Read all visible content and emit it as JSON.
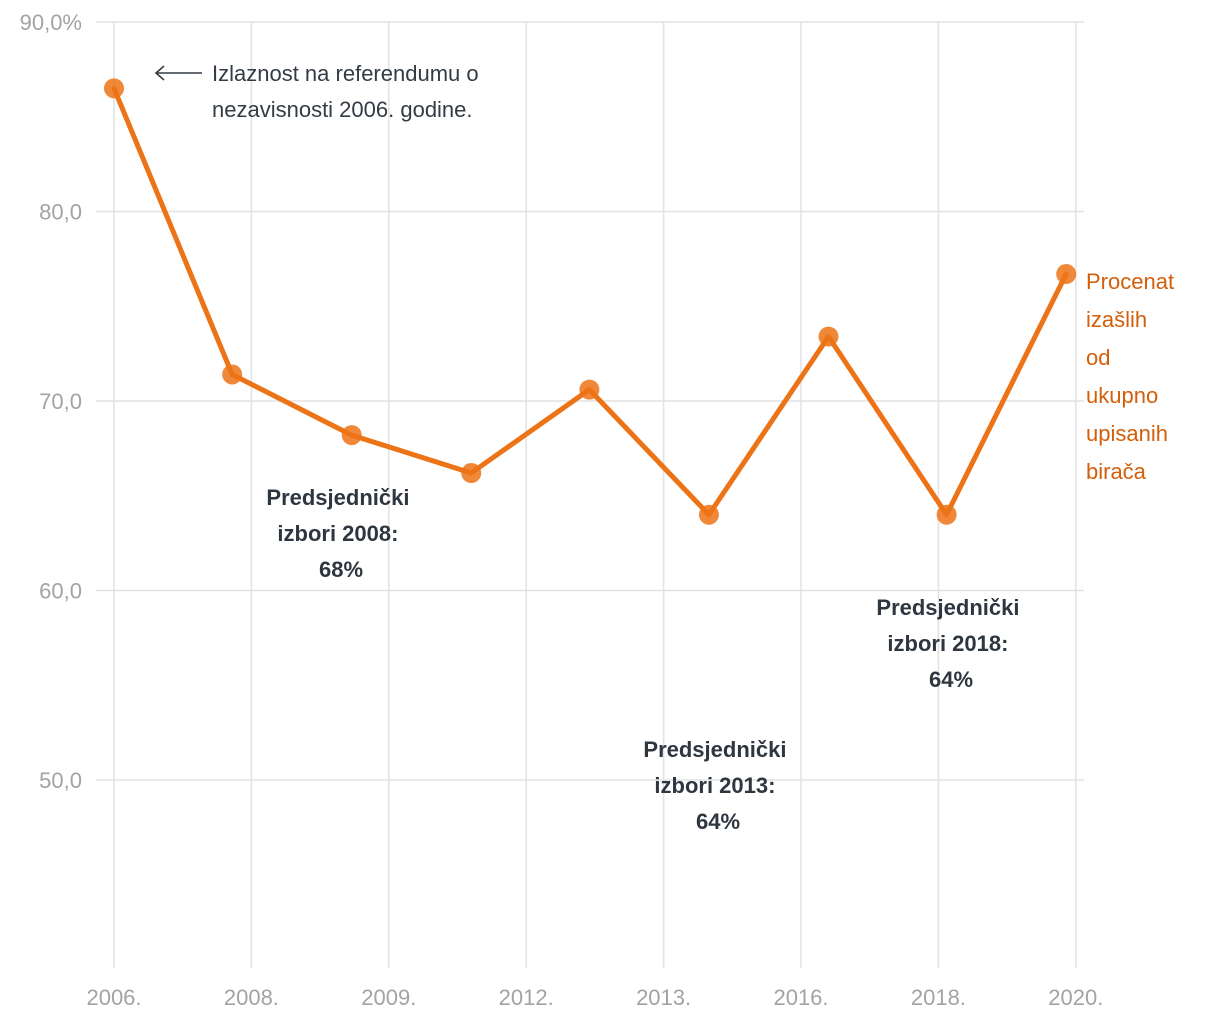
{
  "colors": {
    "line": "#ec7316",
    "point": "#ec7316",
    "grid": "#e2e2e2",
    "tick_text": "#a3a3a3",
    "annotation_text": "#2e3640",
    "series_label": "#d35f0a"
  },
  "chart_data": {
    "type": "line",
    "title": "",
    "xlabel": "",
    "ylabel": "",
    "ylim": [
      40,
      90
    ],
    "y_ticks": [
      {
        "value": 90,
        "label": "90,0%"
      },
      {
        "value": 80,
        "label": "80,0"
      },
      {
        "value": 70,
        "label": "70,0"
      },
      {
        "value": 60,
        "label": "60,0"
      },
      {
        "value": 50,
        "label": "50,0"
      }
    ],
    "x_ticks": [
      {
        "pos": 0,
        "label": "2006."
      },
      {
        "pos": 1,
        "label": "2008."
      },
      {
        "pos": 2,
        "label": "2009."
      },
      {
        "pos": 3,
        "label": "2012."
      },
      {
        "pos": 4,
        "label": "2013."
      },
      {
        "pos": 5,
        "label": "2016."
      },
      {
        "pos": 6,
        "label": "2018."
      },
      {
        "pos": 7,
        "label": "2020."
      }
    ],
    "series": [
      {
        "name": "Procenat izašlih od ukupno upisanih birača",
        "label_lines": [
          "Procenat",
          "izašlih",
          "od",
          "ukupno",
          "upisanih",
          "birača"
        ],
        "points": [
          {
            "x": 0.0,
            "y": 86.5
          },
          {
            "x": 0.86,
            "y": 71.4
          },
          {
            "x": 1.73,
            "y": 68.2
          },
          {
            "x": 2.6,
            "y": 66.2
          },
          {
            "x": 3.46,
            "y": 70.6
          },
          {
            "x": 4.33,
            "y": 64.0
          },
          {
            "x": 5.2,
            "y": 73.4
          },
          {
            "x": 6.06,
            "y": 64.0
          },
          {
            "x": 6.93,
            "y": 76.7
          }
        ]
      }
    ],
    "annotations": [
      {
        "id": "referendum",
        "lines": [
          "Izlaznost na referendumu o",
          "nezavisnosti 2006. godine."
        ]
      },
      {
        "id": "pres2008",
        "lines": [
          "Predsjednički",
          "izbori 2008:",
          "68%"
        ]
      },
      {
        "id": "pres2013",
        "lines": [
          "Predsjednički",
          "izbori 2013:",
          "64%"
        ]
      },
      {
        "id": "pres2018",
        "lines": [
          "Predsjednički",
          "izbori 2018:",
          "64%"
        ]
      }
    ]
  }
}
